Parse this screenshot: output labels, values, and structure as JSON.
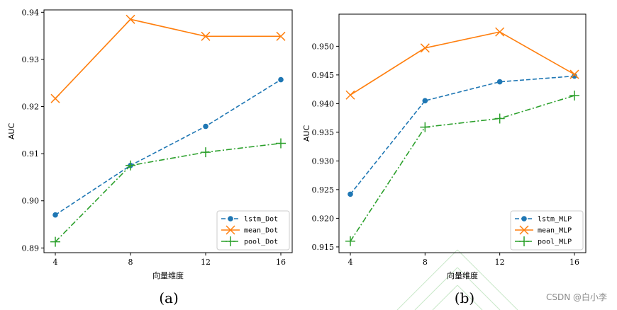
{
  "chart_data": [
    {
      "type": "line",
      "panel_label": "(a)",
      "xlabel": "向量维度",
      "ylabel": "AUC",
      "x": [
        4,
        8,
        12,
        16
      ],
      "xticks": [
        "4",
        "8",
        "12",
        "16"
      ],
      "ylim": [
        0.889,
        0.9405
      ],
      "yticks": [
        "0.89",
        "0.90",
        "0.91",
        "0.92",
        "0.93",
        "0.94"
      ],
      "ytick_values": [
        0.89,
        0.9,
        0.91,
        0.92,
        0.93,
        0.94
      ],
      "grid": false,
      "legend_position": "lower-right",
      "series": [
        {
          "name": "lstm_Dot",
          "color": "#1f77b4",
          "linestyle": "dashed",
          "marker": "circle",
          "values": [
            0.897,
            0.9075,
            0.9158,
            0.9257
          ]
        },
        {
          "name": "mean_Dot",
          "color": "#ff7f0e",
          "linestyle": "solid",
          "marker": "x",
          "values": [
            0.9217,
            0.9385,
            0.9349,
            0.9349
          ]
        },
        {
          "name": "pool_Dot",
          "color": "#2ca02c",
          "linestyle": "dashdot",
          "marker": "plus",
          "values": [
            0.8913,
            0.9075,
            0.9103,
            0.9122
          ]
        }
      ]
    },
    {
      "type": "line",
      "panel_label": "(b)",
      "xlabel": "向量维度",
      "ylabel": "AUC",
      "x": [
        4,
        8,
        12,
        16
      ],
      "xticks": [
        "4",
        "8",
        "12",
        "16"
      ],
      "ylim": [
        0.914,
        0.9556
      ],
      "yticks": [
        "0.915",
        "0.920",
        "0.925",
        "0.930",
        "0.935",
        "0.940",
        "0.945",
        "0.950"
      ],
      "ytick_values": [
        0.915,
        0.92,
        0.925,
        0.93,
        0.935,
        0.94,
        0.945,
        0.95
      ],
      "grid": false,
      "legend_position": "lower-right",
      "series": [
        {
          "name": "lstm_MLP",
          "color": "#1f77b4",
          "linestyle": "dashed",
          "marker": "circle",
          "values": [
            0.9242,
            0.9405,
            0.9438,
            0.9448
          ]
        },
        {
          "name": "mean_MLP",
          "color": "#ff7f0e",
          "linestyle": "solid",
          "marker": "x",
          "values": [
            0.9415,
            0.9497,
            0.9525,
            0.9451
          ]
        },
        {
          "name": "pool_MLP",
          "color": "#2ca02c",
          "linestyle": "dashdot",
          "marker": "plus",
          "values": [
            0.916,
            0.9359,
            0.9374,
            0.9414
          ]
        }
      ]
    }
  ],
  "watermark": "CSDN @白小李"
}
